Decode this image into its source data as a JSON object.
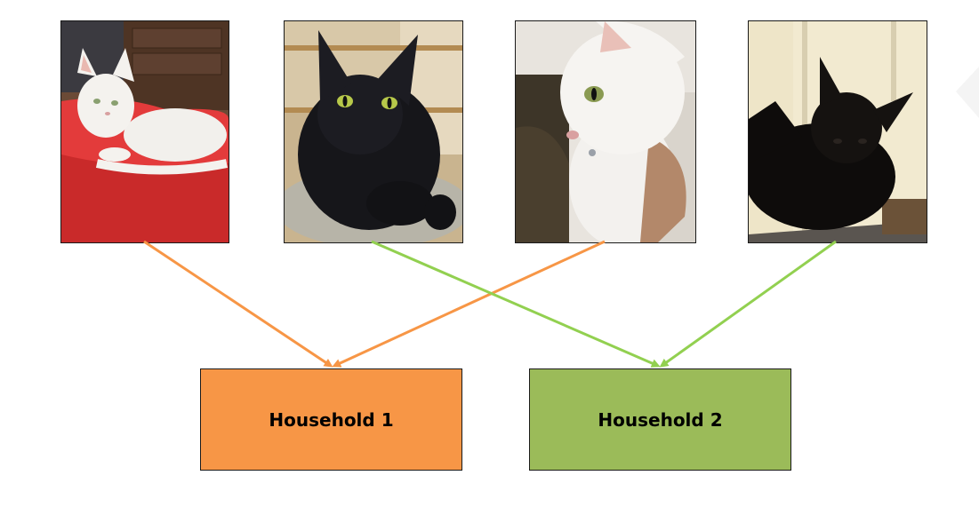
{
  "photos": [
    {
      "subject": "white cat lying on red blanket",
      "household": 1
    },
    {
      "subject": "black cat with green eyes resting on a cushion",
      "household": 2
    },
    {
      "subject": "white cat held in a person's arms",
      "household": 1
    },
    {
      "subject": "black cat sitting on a perch",
      "household": 2
    }
  ],
  "households": [
    {
      "label": "Household 1",
      "color": "#F79646"
    },
    {
      "label": "Household 2",
      "color": "#9BBB59"
    }
  ],
  "arrow_colors": {
    "household_1": "#F79646",
    "household_2": "#92D050"
  }
}
